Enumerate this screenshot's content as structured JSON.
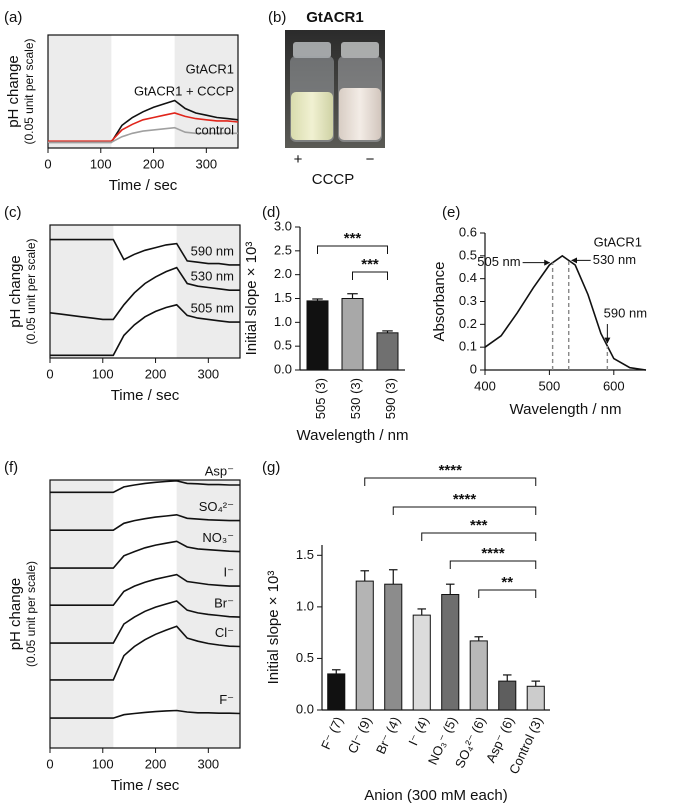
{
  "chart_data": [
    {
      "panel": "(a)",
      "type": "line",
      "xlabel": "Time / sec",
      "ylabel": "pH change",
      "ylabel2": "(0.05 unit per scale)",
      "x": [
        0,
        20,
        40,
        60,
        80,
        100,
        120,
        140,
        160,
        180,
        200,
        220,
        240,
        260,
        280,
        300,
        320,
        340,
        360
      ],
      "xlim": [
        0,
        360
      ],
      "xticks": [
        0,
        100,
        200,
        300
      ],
      "ylim": [
        0,
        1
      ],
      "shaded": [
        [
          0,
          120
        ],
        [
          240,
          360
        ]
      ],
      "series": [
        {
          "name": "GtACR1",
          "color": "#111111",
          "values": [
            0.05,
            0.05,
            0.05,
            0.05,
            0.05,
            0.05,
            0.05,
            0.2,
            0.27,
            0.32,
            0.36,
            0.39,
            0.42,
            0.35,
            0.31,
            0.29,
            0.27,
            0.26,
            0.25
          ]
        },
        {
          "name": "GtACR1 + CCCP",
          "color": "#e0251b",
          "values": [
            0.06,
            0.06,
            0.06,
            0.06,
            0.06,
            0.06,
            0.06,
            0.16,
            0.21,
            0.25,
            0.27,
            0.29,
            0.31,
            0.28,
            0.26,
            0.25,
            0.24,
            0.24,
            0.23
          ]
        },
        {
          "name": "control",
          "color": "#a0a0a0",
          "values": [
            0.05,
            0.05,
            0.05,
            0.05,
            0.05,
            0.05,
            0.05,
            0.1,
            0.13,
            0.15,
            0.16,
            0.17,
            0.18,
            0.14,
            0.13,
            0.13,
            0.13,
            0.13,
            0.13
          ]
        }
      ]
    },
    {
      "panel": "(b)",
      "type": "photo",
      "title": "GtACR1",
      "labels": [
        "+",
        "−"
      ],
      "xlabel": "CCCP"
    },
    {
      "panel": "(c)",
      "type": "line",
      "xlabel": "Time / sec",
      "ylabel": "pH change",
      "ylabel2": "(0.05 unit per scale)",
      "x": [
        0,
        20,
        40,
        60,
        80,
        100,
        120,
        140,
        160,
        180,
        200,
        220,
        240,
        260,
        280,
        300,
        320,
        340,
        360
      ],
      "xlim": [
        0,
        360
      ],
      "xticks": [
        0,
        100,
        200,
        300
      ],
      "ylim": [
        0,
        1
      ],
      "shaded": [
        [
          0,
          120
        ],
        [
          240,
          360
        ]
      ],
      "series": [
        {
          "name": "590 nm",
          "color": "#111111",
          "values": [
            0.89,
            0.89,
            0.89,
            0.89,
            0.89,
            0.89,
            0.89,
            0.74,
            0.78,
            0.81,
            0.83,
            0.85,
            0.86,
            0.73,
            0.72,
            0.71,
            0.71,
            0.7,
            0.7
          ]
        },
        {
          "name": "530 nm",
          "color": "#111111",
          "values": [
            0.34,
            0.33,
            0.32,
            0.31,
            0.3,
            0.29,
            0.29,
            0.4,
            0.49,
            0.56,
            0.61,
            0.65,
            0.68,
            0.56,
            0.54,
            0.53,
            0.52,
            0.51,
            0.51
          ]
        },
        {
          "name": "505 nm",
          "color": "#111111",
          "values": [
            0.02,
            0.02,
            0.02,
            0.02,
            0.02,
            0.02,
            0.02,
            0.17,
            0.25,
            0.31,
            0.35,
            0.38,
            0.4,
            0.32,
            0.3,
            0.29,
            0.28,
            0.27,
            0.27
          ]
        }
      ]
    },
    {
      "panel": "(d)",
      "type": "bar",
      "xlabel": "Wavelength / nm",
      "ylabel": "Initial slope × 10³",
      "categories": [
        "505 (3)",
        "530 (3)",
        "590 (3)"
      ],
      "values": [
        1.45,
        1.5,
        0.78
      ],
      "errors": [
        0.04,
        0.1,
        0.04
      ],
      "colors": [
        "#111111",
        "#a8a8a8",
        "#707070"
      ],
      "ylim": [
        0,
        3
      ],
      "yticks": [
        {
          "value": 0,
          "label": "0.0"
        },
        {
          "value": 0.5,
          "label": "0.5"
        },
        {
          "value": 1,
          "label": "1.0"
        },
        {
          "value": 1.5,
          "label": "1.5"
        },
        {
          "value": 2,
          "label": "2.0"
        },
        {
          "value": 2.5,
          "label": "2.5"
        },
        {
          "value": 3,
          "label": "3.0"
        }
      ],
      "significance": [
        {
          "from": "505 (3)",
          "to": "590 (3)",
          "label": "***"
        },
        {
          "from": "530 (3)",
          "to": "590 (3)",
          "label": "***"
        }
      ]
    },
    {
      "panel": "(e)",
      "type": "line",
      "xlabel": "Wavelength / nm",
      "ylabel": "Absorbance",
      "x": [
        400,
        425,
        450,
        475,
        500,
        520,
        540,
        560,
        580,
        600,
        625,
        650
      ],
      "xlim": [
        400,
        650
      ],
      "xticks": [
        400,
        500,
        600
      ],
      "ylim": [
        0,
        0.6
      ],
      "yticks": [
        0,
        0.1,
        0.2,
        0.3,
        0.4,
        0.5,
        0.6
      ],
      "series": [
        {
          "name": "GtACR1",
          "color": "#111111",
          "values": [
            0.1,
            0.15,
            0.25,
            0.36,
            0.46,
            0.5,
            0.46,
            0.33,
            0.16,
            0.05,
            0.01,
            0
          ]
        }
      ],
      "markers": [
        {
          "value": 505,
          "label": "505 nm"
        },
        {
          "value": 530,
          "label": "530 nm"
        },
        {
          "value": 590,
          "label": "590 nm"
        }
      ]
    },
    {
      "panel": "(f)",
      "type": "line",
      "xlabel": "Time / sec",
      "ylabel": "pH change",
      "ylabel2": "(0.05 unit per scale)",
      "x": [
        0,
        20,
        40,
        60,
        80,
        100,
        120,
        140,
        160,
        180,
        200,
        220,
        240,
        260,
        280,
        300,
        320,
        340,
        360
      ],
      "xlim": [
        0,
        360
      ],
      "xticks": [
        0,
        100,
        200,
        300
      ],
      "ylim": [
        0,
        7
      ],
      "shaded": [
        [
          0,
          120
        ],
        [
          240,
          360
        ]
      ],
      "series": [
        {
          "name": "Asp⁻",
          "color": "#111111",
          "values": [
            6.68,
            6.68,
            6.68,
            6.68,
            6.68,
            6.68,
            6.68,
            6.82,
            6.87,
            6.91,
            6.94,
            6.96,
            6.98,
            6.91,
            6.9,
            6.88,
            6.88,
            6.87,
            6.87
          ]
        },
        {
          "name": "SO₄²⁻",
          "color": "#111111",
          "values": [
            5.69,
            5.69,
            5.69,
            5.69,
            5.69,
            5.69,
            5.69,
            5.87,
            5.94,
            5.99,
            6.03,
            6.06,
            6.09,
            6.0,
            5.98,
            5.96,
            5.95,
            5.94,
            5.94
          ]
        },
        {
          "name": "NO₃⁻",
          "color": "#111111",
          "values": [
            4.7,
            4.7,
            4.7,
            4.7,
            4.7,
            4.7,
            4.7,
            5.02,
            5.13,
            5.23,
            5.3,
            5.35,
            5.4,
            5.25,
            5.2,
            5.18,
            5.16,
            5.14,
            5.13
          ]
        },
        {
          "name": "I⁻",
          "color": "#111111",
          "values": [
            3.73,
            3.73,
            3.73,
            3.73,
            3.73,
            3.73,
            3.73,
            4.09,
            4.23,
            4.33,
            4.41,
            4.47,
            4.53,
            4.35,
            4.31,
            4.27,
            4.25,
            4.23,
            4.23
          ]
        },
        {
          "name": "Br⁻",
          "color": "#111111",
          "values": [
            2.74,
            2.74,
            2.74,
            2.74,
            2.74,
            2.74,
            2.74,
            3.24,
            3.42,
            3.57,
            3.68,
            3.76,
            3.84,
            3.6,
            3.53,
            3.49,
            3.46,
            3.43,
            3.42
          ]
        },
        {
          "name": "Cl⁻",
          "color": "#111111",
          "values": [
            1.78,
            1.78,
            1.78,
            1.78,
            1.78,
            1.78,
            1.78,
            2.41,
            2.65,
            2.83,
            2.97,
            3.08,
            3.18,
            2.87,
            2.79,
            2.73,
            2.69,
            2.66,
            2.65
          ]
        },
        {
          "name": "F⁻",
          "color": "#111111",
          "values": [
            0.78,
            0.78,
            0.78,
            0.78,
            0.78,
            0.78,
            0.78,
            0.87,
            0.9,
            0.93,
            0.95,
            0.97,
            0.98,
            0.94,
            0.92,
            0.92,
            0.91,
            0.91,
            0.9
          ]
        }
      ]
    },
    {
      "panel": "(g)",
      "type": "bar",
      "xlabel": "Anion (300 mM each)",
      "ylabel": "Initial slope × 10³",
      "categories": [
        "F⁻ (7)",
        "Cl⁻ (9)",
        "Br⁻ (4)",
        "I⁻ (4)",
        "NO₃⁻ (5)",
        "SO₄²⁻ (6)",
        "Asp⁻ (6)",
        "Control (3)"
      ],
      "values": [
        0.35,
        1.25,
        1.22,
        0.92,
        1.12,
        0.67,
        0.28,
        0.23
      ],
      "errors": [
        0.04,
        0.1,
        0.14,
        0.06,
        0.1,
        0.04,
        0.06,
        0.05
      ],
      "colors": [
        "#111111",
        "#b4b4b4",
        "#8c8c8c",
        "#dcdcdc",
        "#6e6e6e",
        "#b8b8b8",
        "#5e5e5e",
        "#cccccc"
      ],
      "ylim": [
        0,
        1.6
      ],
      "yticks": [
        {
          "value": 0,
          "label": "0.0"
        },
        {
          "value": 0.5,
          "label": "0.5"
        },
        {
          "value": 1,
          "label": "1.0"
        },
        {
          "value": 1.5,
          "label": "1.5"
        }
      ],
      "significance": [
        {
          "from": "Cl⁻ (9)",
          "to": "Control (3)",
          "label": "****"
        },
        {
          "from": "Br⁻ (4)",
          "to": "Control (3)",
          "label": "****"
        },
        {
          "from": "I⁻ (4)",
          "to": "Control (3)",
          "label": "***"
        },
        {
          "from": "NO₃⁻ (5)",
          "to": "Control (3)",
          "label": "****"
        },
        {
          "from": "SO₄²⁻ (6)",
          "to": "Control (3)",
          "label": "**"
        }
      ]
    }
  ]
}
